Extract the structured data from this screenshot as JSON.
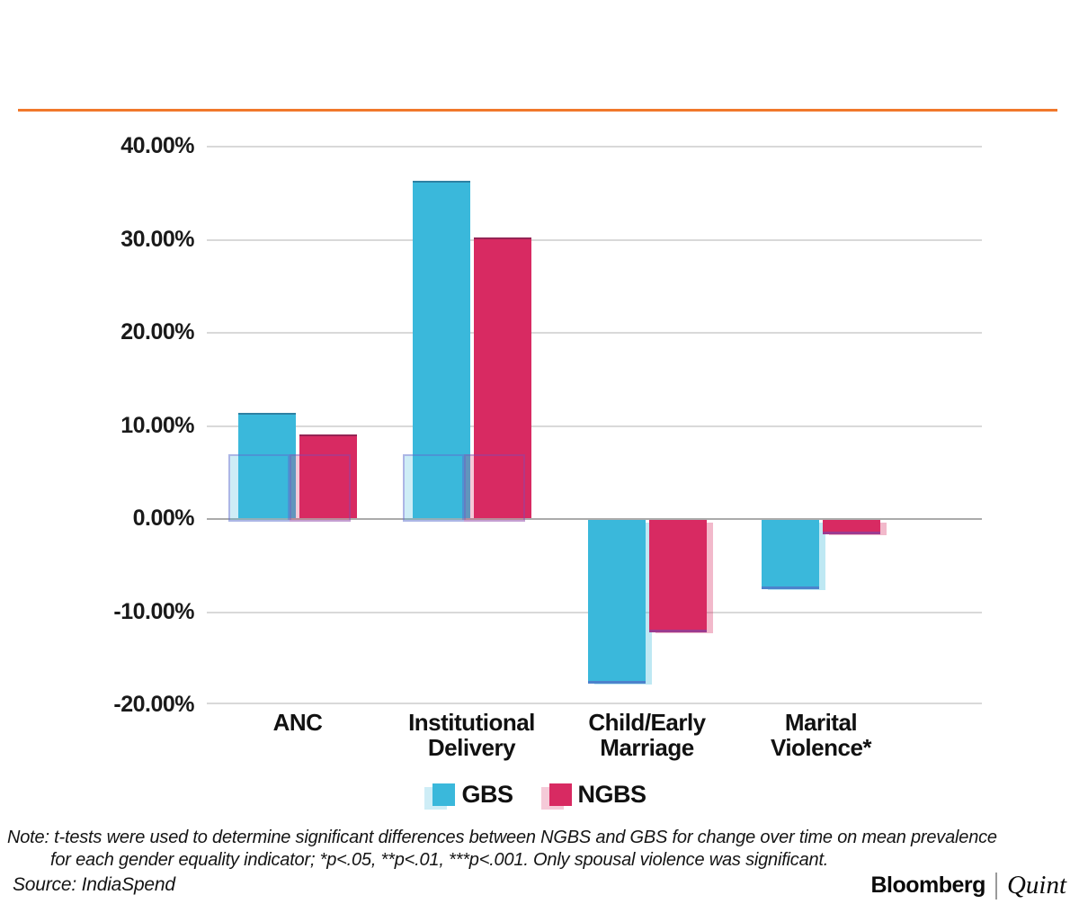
{
  "accent_rule_color": "#f1782b",
  "chart_data": {
    "type": "bar",
    "title": "",
    "categories": [
      "ANC",
      "Institutional Delivery",
      "Child/Early Marriage",
      "Marital Violence*"
    ],
    "category_lines": [
      [
        "ANC"
      ],
      [
        "Institutional",
        "Delivery"
      ],
      [
        "Child/Early",
        "Marriage"
      ],
      [
        "Marital",
        "Violence*"
      ]
    ],
    "series": [
      {
        "name": "GBS",
        "color": "#3ab8db",
        "values": [
          11.3,
          36.2,
          -17.4,
          -7.2
        ]
      },
      {
        "name": "NGBS",
        "color": "#d82a62",
        "values": [
          9.0,
          30.1,
          -11.9,
          -1.4
        ]
      }
    ],
    "ylim": [
      -20,
      40
    ],
    "ytick_values": [
      40,
      30,
      20,
      10,
      0,
      -10,
      -20
    ],
    "ytick_labels": [
      "40.00%",
      "30.00%",
      "20.00%",
      "10.00%",
      "0.00%",
      "-10.00%",
      "-20.00%"
    ],
    "grid": true,
    "legend_position": "bottom-center"
  },
  "note": {
    "line1": "Note: t-tests were used to determine significant differences between NGBS and GBS for change over time on mean prevalence",
    "line2": "for each gender equality indicator; *p<.05, **p<.01, ***p<.001. Only spousal violence was significant."
  },
  "source_label": "Source: IndiaSpend",
  "branding": {
    "bloomberg": "Bloomberg",
    "quint": "Quint"
  }
}
